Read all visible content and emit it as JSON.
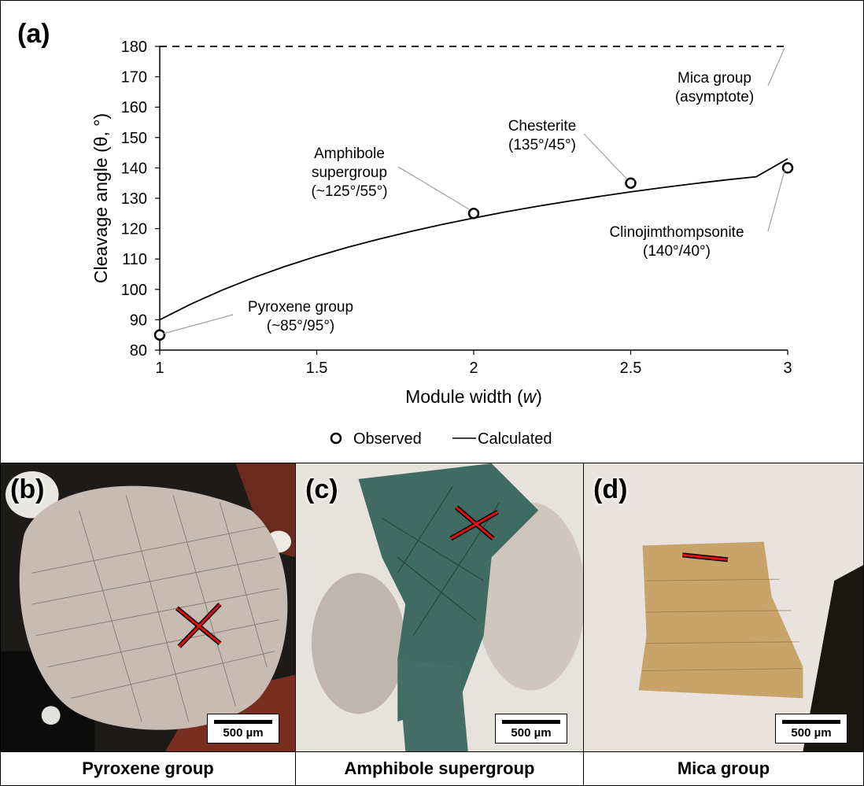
{
  "chart_data": {
    "type": "line",
    "panel_label": "(a)",
    "xlabel_text": "Module width (",
    "xlabel_var": "w",
    "xlabel_close": ")",
    "ylabel": "Cleavage angle (θ, °)",
    "xlim": [
      1,
      3
    ],
    "ylim": [
      80,
      180
    ],
    "x_ticks": [
      "1",
      "1.5",
      "2",
      "2.5",
      "3"
    ],
    "y_ticks": [
      "80",
      "90",
      "100",
      "110",
      "120",
      "130",
      "140",
      "150",
      "160",
      "170",
      "180"
    ],
    "grid": false,
    "legend_position": "bottom-center",
    "series": [
      {
        "name": "Observed",
        "kind": "scatter",
        "x": [
          1,
          2,
          2.5,
          3
        ],
        "y": [
          85,
          125,
          135,
          140
        ]
      },
      {
        "name": "Calculated",
        "kind": "line",
        "x": [
          1,
          1.1,
          1.2,
          1.3,
          1.4,
          1.5,
          1.6,
          1.7,
          1.8,
          1.9,
          2,
          2.1,
          2.2,
          2.3,
          2.4,
          2.5,
          2.6,
          2.7,
          2.8,
          2.9,
          3
        ],
        "y": [
          90,
          95.2,
          99.8,
          103.9,
          107.6,
          110.9,
          113.9,
          116.6,
          119.1,
          121.4,
          123.5,
          125.5,
          127.3,
          129,
          130.6,
          132.1,
          133.5,
          134.8,
          136,
          137.1,
          143
        ]
      },
      {
        "name": "Mica group asymptote",
        "kind": "dashed",
        "x": [
          1,
          3
        ],
        "y": [
          180,
          180
        ]
      }
    ],
    "annotations": [
      {
        "lines": [
          "Pyroxene group",
          "(~85°/95°)"
        ],
        "target": [
          1,
          85
        ]
      },
      {
        "lines": [
          "Amphibole",
          "supergroup",
          "(~125°/55°)"
        ],
        "target": [
          2,
          125
        ]
      },
      {
        "lines": [
          "Chesterite",
          "(135°/45°)"
        ],
        "target": [
          2.5,
          135
        ]
      },
      {
        "lines": [
          "Clinojimthompsonite",
          "(140°/40°)"
        ],
        "target": [
          3,
          140
        ]
      },
      {
        "lines": [
          "Mica group",
          "(asymptote)"
        ],
        "target": [
          3,
          180
        ]
      }
    ]
  },
  "panels": [
    {
      "label": "(b)",
      "scale": "500 µm",
      "caption": "Pyroxene group",
      "accent": "#8a7a70"
    },
    {
      "label": "(c)",
      "scale": "500 µm",
      "caption": "Amphibole supergroup",
      "accent": "#3f6b62"
    },
    {
      "label": "(d)",
      "scale": "500 µm",
      "caption": "Mica group",
      "accent": "#c9a46a"
    }
  ]
}
